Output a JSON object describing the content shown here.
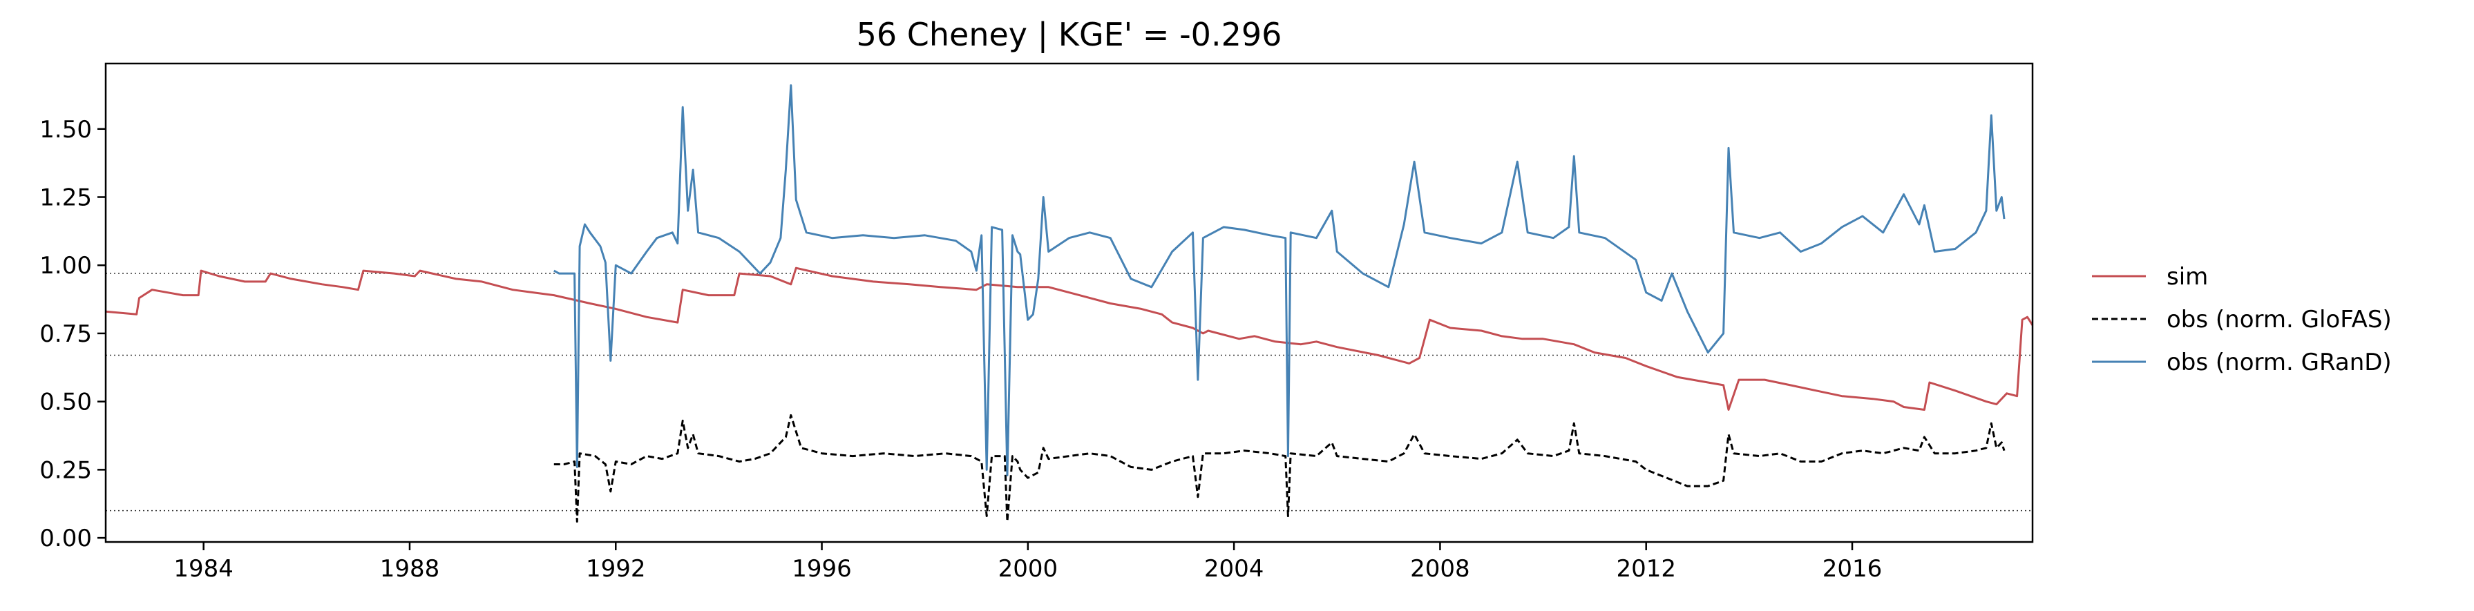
{
  "chart_data": {
    "type": "line",
    "title": "56  Cheney | KGE' = -0.296",
    "xlabel": "",
    "ylabel": "",
    "xlim": [
      1982.1,
      2019.5
    ],
    "ylim": [
      -0.015,
      1.74
    ],
    "x_ticks": [
      1984,
      1988,
      1992,
      1996,
      2000,
      2004,
      2008,
      2012,
      2016
    ],
    "x_tick_labels": [
      "1984",
      "1988",
      "1992",
      "1996",
      "2000",
      "2004",
      "2008",
      "2012",
      "2016"
    ],
    "y_ticks": [
      0.0,
      0.25,
      0.5,
      0.75,
      1.0,
      1.25,
      1.5
    ],
    "y_tick_labels": [
      "0.00",
      "0.25",
      "0.50",
      "0.75",
      "1.00",
      "1.25",
      "1.50"
    ],
    "hlines": [
      0.97,
      0.67,
      0.1
    ],
    "grid": false,
    "legend_position": "outside-right",
    "series": [
      {
        "name": "sim",
        "color": "#c44e52",
        "style": "solid",
        "points": [
          [
            1982.1,
            0.83
          ],
          [
            1982.7,
            0.82
          ],
          [
            1982.75,
            0.88
          ],
          [
            1983.0,
            0.91
          ],
          [
            1983.6,
            0.89
          ],
          [
            1983.9,
            0.89
          ],
          [
            1983.95,
            0.98
          ],
          [
            1984.3,
            0.96
          ],
          [
            1984.8,
            0.94
          ],
          [
            1985.2,
            0.94
          ],
          [
            1985.3,
            0.97
          ],
          [
            1985.7,
            0.95
          ],
          [
            1986.3,
            0.93
          ],
          [
            1986.7,
            0.92
          ],
          [
            1987.0,
            0.91
          ],
          [
            1987.1,
            0.98
          ],
          [
            1987.7,
            0.97
          ],
          [
            1988.1,
            0.96
          ],
          [
            1988.2,
            0.98
          ],
          [
            1988.9,
            0.95
          ],
          [
            1989.4,
            0.94
          ],
          [
            1990.0,
            0.91
          ],
          [
            1990.8,
            0.89
          ],
          [
            1991.5,
            0.86
          ],
          [
            1992.0,
            0.84
          ],
          [
            1992.6,
            0.81
          ],
          [
            1993.2,
            0.79
          ],
          [
            1993.3,
            0.91
          ],
          [
            1993.8,
            0.89
          ],
          [
            1994.3,
            0.89
          ],
          [
            1994.4,
            0.97
          ],
          [
            1995.0,
            0.96
          ],
          [
            1995.4,
            0.93
          ],
          [
            1995.5,
            0.99
          ],
          [
            1996.2,
            0.96
          ],
          [
            1997.0,
            0.94
          ],
          [
            1997.7,
            0.93
          ],
          [
            1998.3,
            0.92
          ],
          [
            1999.0,
            0.91
          ],
          [
            1999.2,
            0.93
          ],
          [
            1999.8,
            0.92
          ],
          [
            2000.4,
            0.92
          ],
          [
            2001.0,
            0.89
          ],
          [
            2001.6,
            0.86
          ],
          [
            2002.2,
            0.84
          ],
          [
            2002.6,
            0.82
          ],
          [
            2002.8,
            0.79
          ],
          [
            2003.2,
            0.77
          ],
          [
            2003.4,
            0.75
          ],
          [
            2003.5,
            0.76
          ],
          [
            2004.1,
            0.73
          ],
          [
            2004.4,
            0.74
          ],
          [
            2004.8,
            0.72
          ],
          [
            2005.3,
            0.71
          ],
          [
            2005.6,
            0.72
          ],
          [
            2006.0,
            0.7
          ],
          [
            2006.8,
            0.67
          ],
          [
            2007.4,
            0.64
          ],
          [
            2007.6,
            0.66
          ],
          [
            2007.8,
            0.8
          ],
          [
            2008.2,
            0.77
          ],
          [
            2008.8,
            0.76
          ],
          [
            2009.2,
            0.74
          ],
          [
            2009.6,
            0.73
          ],
          [
            2010.0,
            0.73
          ],
          [
            2010.6,
            0.71
          ],
          [
            2011.0,
            0.68
          ],
          [
            2011.6,
            0.66
          ],
          [
            2012.0,
            0.63
          ],
          [
            2012.6,
            0.59
          ],
          [
            2013.2,
            0.57
          ],
          [
            2013.5,
            0.56
          ],
          [
            2013.6,
            0.47
          ],
          [
            2013.8,
            0.58
          ],
          [
            2014.3,
            0.58
          ],
          [
            2014.8,
            0.56
          ],
          [
            2015.3,
            0.54
          ],
          [
            2015.8,
            0.52
          ],
          [
            2016.4,
            0.51
          ],
          [
            2016.8,
            0.5
          ],
          [
            2017.0,
            0.48
          ],
          [
            2017.4,
            0.47
          ],
          [
            2017.5,
            0.57
          ],
          [
            2018.0,
            0.54
          ],
          [
            2018.6,
            0.5
          ],
          [
            2018.8,
            0.49
          ],
          [
            2019.0,
            0.53
          ],
          [
            2019.2,
            0.52
          ],
          [
            2019.3,
            0.8
          ],
          [
            2019.4,
            0.81
          ],
          [
            2019.5,
            0.78
          ]
        ]
      },
      {
        "name": "obs (norm. GloFAS)",
        "color": "#000000",
        "style": "dashed",
        "points": [
          [
            1990.8,
            0.27
          ],
          [
            1991.0,
            0.27
          ],
          [
            1991.2,
            0.28
          ],
          [
            1991.25,
            0.06
          ],
          [
            1991.3,
            0.31
          ],
          [
            1991.6,
            0.3
          ],
          [
            1991.8,
            0.27
          ],
          [
            1991.9,
            0.17
          ],
          [
            1992.0,
            0.28
          ],
          [
            1992.3,
            0.27
          ],
          [
            1992.6,
            0.3
          ],
          [
            1992.9,
            0.29
          ],
          [
            1993.2,
            0.31
          ],
          [
            1993.3,
            0.43
          ],
          [
            1993.4,
            0.33
          ],
          [
            1993.5,
            0.38
          ],
          [
            1993.6,
            0.31
          ],
          [
            1994.0,
            0.3
          ],
          [
            1994.4,
            0.28
          ],
          [
            1994.7,
            0.29
          ],
          [
            1995.0,
            0.31
          ],
          [
            1995.3,
            0.37
          ],
          [
            1995.4,
            0.45
          ],
          [
            1995.6,
            0.33
          ],
          [
            1996.0,
            0.31
          ],
          [
            1996.6,
            0.3
          ],
          [
            1997.2,
            0.31
          ],
          [
            1997.8,
            0.3
          ],
          [
            1998.4,
            0.31
          ],
          [
            1998.9,
            0.3
          ],
          [
            1999.1,
            0.28
          ],
          [
            1999.2,
            0.08
          ],
          [
            1999.3,
            0.3
          ],
          [
            1999.55,
            0.3
          ],
          [
            1999.6,
            0.06
          ],
          [
            1999.7,
            0.3
          ],
          [
            1999.8,
            0.28
          ],
          [
            1999.85,
            0.25
          ],
          [
            2000.0,
            0.22
          ],
          [
            2000.2,
            0.24
          ],
          [
            2000.3,
            0.33
          ],
          [
            2000.4,
            0.29
          ],
          [
            2000.8,
            0.3
          ],
          [
            2001.2,
            0.31
          ],
          [
            2001.6,
            0.3
          ],
          [
            2002.0,
            0.26
          ],
          [
            2002.4,
            0.25
          ],
          [
            2002.8,
            0.28
          ],
          [
            2003.2,
            0.3
          ],
          [
            2003.3,
            0.15
          ],
          [
            2003.4,
            0.31
          ],
          [
            2003.8,
            0.31
          ],
          [
            2004.2,
            0.32
          ],
          [
            2004.7,
            0.31
          ],
          [
            2005.0,
            0.3
          ],
          [
            2005.05,
            0.08
          ],
          [
            2005.1,
            0.31
          ],
          [
            2005.6,
            0.3
          ],
          [
            2005.9,
            0.35
          ],
          [
            2006.0,
            0.3
          ],
          [
            2006.5,
            0.29
          ],
          [
            2007.0,
            0.28
          ],
          [
            2007.3,
            0.31
          ],
          [
            2007.5,
            0.38
          ],
          [
            2007.7,
            0.31
          ],
          [
            2008.2,
            0.3
          ],
          [
            2008.8,
            0.29
          ],
          [
            2009.2,
            0.31
          ],
          [
            2009.5,
            0.36
          ],
          [
            2009.7,
            0.31
          ],
          [
            2010.2,
            0.3
          ],
          [
            2010.5,
            0.32
          ],
          [
            2010.6,
            0.42
          ],
          [
            2010.7,
            0.31
          ],
          [
            2011.2,
            0.3
          ],
          [
            2011.8,
            0.28
          ],
          [
            2012.0,
            0.25
          ],
          [
            2012.4,
            0.22
          ],
          [
            2012.8,
            0.19
          ],
          [
            2013.2,
            0.19
          ],
          [
            2013.5,
            0.21
          ],
          [
            2013.6,
            0.38
          ],
          [
            2013.7,
            0.31
          ],
          [
            2014.2,
            0.3
          ],
          [
            2014.6,
            0.31
          ],
          [
            2015.0,
            0.28
          ],
          [
            2015.4,
            0.28
          ],
          [
            2015.8,
            0.31
          ],
          [
            2016.2,
            0.32
          ],
          [
            2016.6,
            0.31
          ],
          [
            2017.0,
            0.33
          ],
          [
            2017.3,
            0.32
          ],
          [
            2017.4,
            0.37
          ],
          [
            2017.6,
            0.31
          ],
          [
            2018.0,
            0.31
          ],
          [
            2018.4,
            0.32
          ],
          [
            2018.6,
            0.33
          ],
          [
            2018.7,
            0.42
          ],
          [
            2018.8,
            0.33
          ],
          [
            2018.9,
            0.35
          ],
          [
            2018.95,
            0.32
          ]
        ]
      },
      {
        "name": "obs (norm. GRanD)",
        "color": "#4682b4",
        "style": "solid",
        "points": [
          [
            1990.8,
            0.98
          ],
          [
            1990.9,
            0.97
          ],
          [
            1991.2,
            0.97
          ],
          [
            1991.25,
            0.26
          ],
          [
            1991.3,
            1.07
          ],
          [
            1991.4,
            1.15
          ],
          [
            1991.5,
            1.12
          ],
          [
            1991.7,
            1.07
          ],
          [
            1991.8,
            1.01
          ],
          [
            1991.9,
            0.65
          ],
          [
            1992.0,
            1.0
          ],
          [
            1992.3,
            0.97
          ],
          [
            1992.6,
            1.05
          ],
          [
            1992.8,
            1.1
          ],
          [
            1993.1,
            1.12
          ],
          [
            1993.2,
            1.08
          ],
          [
            1993.3,
            1.58
          ],
          [
            1993.4,
            1.2
          ],
          [
            1993.5,
            1.35
          ],
          [
            1993.6,
            1.12
          ],
          [
            1994.0,
            1.1
          ],
          [
            1994.4,
            1.05
          ],
          [
            1994.8,
            0.97
          ],
          [
            1995.0,
            1.01
          ],
          [
            1995.2,
            1.1
          ],
          [
            1995.3,
            1.35
          ],
          [
            1995.4,
            1.66
          ],
          [
            1995.5,
            1.24
          ],
          [
            1995.7,
            1.12
          ],
          [
            1996.2,
            1.1
          ],
          [
            1996.8,
            1.11
          ],
          [
            1997.4,
            1.1
          ],
          [
            1998.0,
            1.11
          ],
          [
            1998.6,
            1.09
          ],
          [
            1998.9,
            1.05
          ],
          [
            1999.0,
            0.98
          ],
          [
            1999.1,
            1.11
          ],
          [
            1999.2,
            0.25
          ],
          [
            1999.3,
            1.14
          ],
          [
            1999.5,
            1.13
          ],
          [
            1999.6,
            0.23
          ],
          [
            1999.7,
            1.11
          ],
          [
            1999.8,
            1.05
          ],
          [
            1999.85,
            1.04
          ],
          [
            2000.0,
            0.8
          ],
          [
            2000.1,
            0.82
          ],
          [
            2000.2,
            0.95
          ],
          [
            2000.3,
            1.25
          ],
          [
            2000.4,
            1.05
          ],
          [
            2000.8,
            1.1
          ],
          [
            2001.2,
            1.12
          ],
          [
            2001.6,
            1.1
          ],
          [
            2002.0,
            0.95
          ],
          [
            2002.4,
            0.92
          ],
          [
            2002.8,
            1.05
          ],
          [
            2003.2,
            1.12
          ],
          [
            2003.3,
            0.58
          ],
          [
            2003.4,
            1.1
          ],
          [
            2003.8,
            1.14
          ],
          [
            2004.2,
            1.13
          ],
          [
            2004.7,
            1.11
          ],
          [
            2005.0,
            1.1
          ],
          [
            2005.05,
            0.3
          ],
          [
            2005.1,
            1.12
          ],
          [
            2005.6,
            1.1
          ],
          [
            2005.9,
            1.2
          ],
          [
            2006.0,
            1.05
          ],
          [
            2006.5,
            0.97
          ],
          [
            2007.0,
            0.92
          ],
          [
            2007.3,
            1.15
          ],
          [
            2007.5,
            1.38
          ],
          [
            2007.7,
            1.12
          ],
          [
            2008.2,
            1.1
          ],
          [
            2008.8,
            1.08
          ],
          [
            2009.2,
            1.12
          ],
          [
            2009.5,
            1.38
          ],
          [
            2009.7,
            1.12
          ],
          [
            2010.2,
            1.1
          ],
          [
            2010.5,
            1.14
          ],
          [
            2010.6,
            1.4
          ],
          [
            2010.7,
            1.12
          ],
          [
            2011.2,
            1.1
          ],
          [
            2011.8,
            1.02
          ],
          [
            2012.0,
            0.9
          ],
          [
            2012.3,
            0.87
          ],
          [
            2012.5,
            0.97
          ],
          [
            2012.8,
            0.83
          ],
          [
            2013.2,
            0.68
          ],
          [
            2013.5,
            0.75
          ],
          [
            2013.6,
            1.43
          ],
          [
            2013.7,
            1.12
          ],
          [
            2014.2,
            1.1
          ],
          [
            2014.6,
            1.12
          ],
          [
            2015.0,
            1.05
          ],
          [
            2015.4,
            1.08
          ],
          [
            2015.8,
            1.14
          ],
          [
            2016.2,
            1.18
          ],
          [
            2016.6,
            1.12
          ],
          [
            2017.0,
            1.26
          ],
          [
            2017.3,
            1.15
          ],
          [
            2017.4,
            1.22
          ],
          [
            2017.6,
            1.05
          ],
          [
            2018.0,
            1.06
          ],
          [
            2018.4,
            1.12
          ],
          [
            2018.6,
            1.2
          ],
          [
            2018.7,
            1.55
          ],
          [
            2018.8,
            1.2
          ],
          [
            2018.9,
            1.25
          ],
          [
            2018.95,
            1.17
          ]
        ]
      }
    ]
  }
}
